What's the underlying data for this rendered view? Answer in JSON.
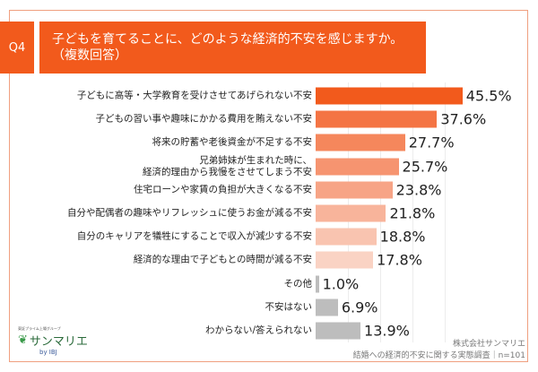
{
  "header": {
    "badge": "Q4",
    "title_line1": "子どもを育てることに、どのような経済的不安を感じますか。",
    "title_line2": "（複数回答）"
  },
  "chart_data": {
    "type": "bar",
    "orientation": "horizontal",
    "categories": [
      "子どもに高等・大学教育を受けさせてあげられない不安",
      "子どもの習い事や趣味にかかる費用を賄えない不安",
      "将来の貯蓄や老後資金が不足する不安",
      "兄弟姉妹が生まれた時に、\n経済的理由から我慢をさせてしまう不安",
      "住宅ローンや家賃の負担が大きくなる不安",
      "自分や配偶者の趣味やリフレッシュに使うお金が減る不安",
      "自分のキャリアを犠牲にすることで収入が減少する不安",
      "経済的な理由で子どもとの時間が減る不安",
      "その他",
      "不安はない",
      "わからない/答えられない"
    ],
    "values": [
      45.5,
      37.6,
      27.7,
      25.7,
      23.8,
      21.8,
      18.8,
      17.8,
      1.0,
      6.9,
      13.9
    ],
    "value_labels": [
      "45.5%",
      "37.6%",
      "27.7%",
      "25.7%",
      "23.8%",
      "21.8%",
      "18.8%",
      "17.8%",
      "1.0%",
      "6.9%",
      "13.9%"
    ],
    "colors": [
      "#f25a1c",
      "#f47444",
      "#f5875c",
      "#f69470",
      "#f7a486",
      "#f8b49b",
      "#f9c4b0",
      "#fad3c4",
      "#bdbdbd",
      "#bdbdbd",
      "#bdbdbd"
    ],
    "unit": "%",
    "xlim": [
      0,
      50
    ],
    "grid": true
  },
  "footer": {
    "company": "株式会社サンマリエ",
    "survey": "結婚への経済的不安に関する実態調査｜n=101"
  },
  "logo": {
    "tagline": "東証プライム上場グループ",
    "name": "サンマリエ",
    "by": "by IBJ"
  }
}
